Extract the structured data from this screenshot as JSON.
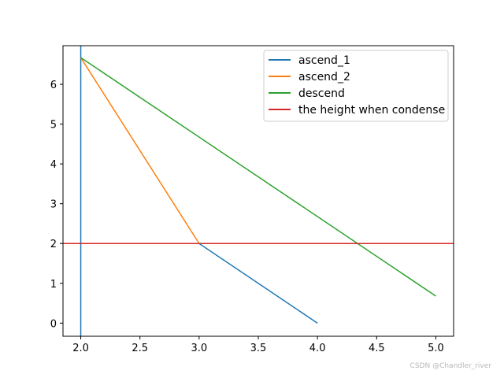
{
  "chart_data": {
    "type": "line",
    "title": "",
    "xlabel": "",
    "ylabel": "",
    "xlim": [
      1.85,
      5.15
    ],
    "ylim": [
      -0.33,
      6.97
    ],
    "xticks": [
      2.0,
      2.5,
      3.0,
      3.5,
      4.0,
      4.5,
      5.0
    ],
    "xtick_labels": [
      "2.0",
      "2.5",
      "3.0",
      "3.5",
      "4.0",
      "4.5",
      "5.0"
    ],
    "yticks": [
      0,
      1,
      2,
      3,
      4,
      5,
      6
    ],
    "ytick_labels": [
      "0",
      "1",
      "2",
      "3",
      "4",
      "5",
      "6"
    ],
    "grid": false,
    "legend_position": "upper right",
    "series": [
      {
        "name": "ascend_1",
        "color": "#1f77b4",
        "points": [
          [
            2.0,
            -0.4
          ],
          [
            2.0,
            7.0
          ]
        ]
      },
      {
        "name": "ascend_2",
        "color": "#ff7f0e",
        "points": [
          [
            2.0,
            6.67
          ],
          [
            3.0,
            2.0
          ]
        ]
      },
      {
        "name": "descend",
        "color": "#2ca02c",
        "points": [
          [
            2.0,
            6.67
          ],
          [
            5.0,
            0.68
          ]
        ]
      },
      {
        "name": "the height when condense",
        "color": "#d62728",
        "points": [
          [
            1.8,
            2.0
          ],
          [
            5.2,
            2.0
          ]
        ]
      }
    ],
    "extra_segments": [
      {
        "series": "ascend_1",
        "color": "#1f77b4",
        "points": [
          [
            3.0,
            2.0
          ],
          [
            4.0,
            0.0
          ]
        ]
      }
    ]
  },
  "watermark": "CSDN @Chandler_river"
}
